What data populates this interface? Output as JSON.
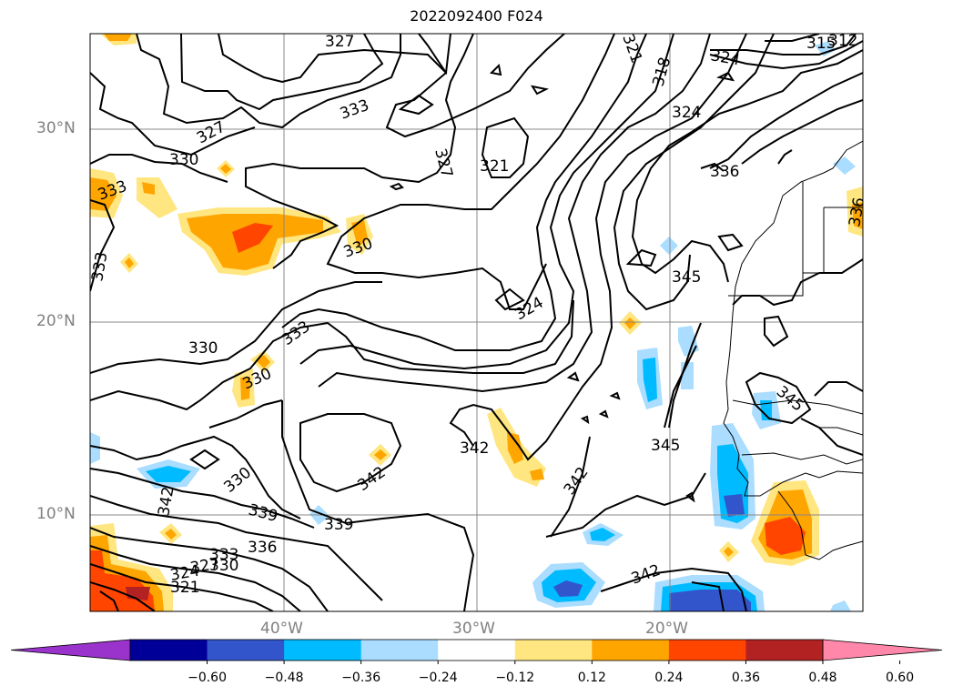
{
  "title": "2022092400 F024",
  "lat_labels": [
    "30°N",
    "20°N",
    "10°N"
  ],
  "lon_labels": [
    "40°W",
    "30°W",
    "20°W"
  ],
  "contour_labels": [
    "327",
    "333",
    "327",
    "330",
    "333",
    "330",
    "333",
    "321",
    "327",
    "321",
    "318",
    "324",
    "312",
    "315",
    "324",
    "336",
    "336",
    "345",
    "324",
    "330",
    "333",
    "330",
    "330",
    "342",
    "342",
    "342",
    "342",
    "345",
    "345",
    "339",
    "339",
    "336",
    "333",
    "330",
    "327",
    "324",
    "321",
    "342",
    "342"
  ],
  "colorbar": {
    "tick_labels": [
      "−0.60",
      "−0.48",
      "−0.36",
      "−0.24",
      "−0.12",
      "0.12",
      "0.24",
      "0.36",
      "0.48",
      "0.60"
    ],
    "colors": [
      "#9933cc",
      "#000099",
      "#3355cc",
      "#00bbff",
      "#aaddff",
      "#ffffff",
      "#ffe680",
      "#ffa500",
      "#ff4500",
      "#b22222",
      "#ff88aa"
    ]
  }
}
